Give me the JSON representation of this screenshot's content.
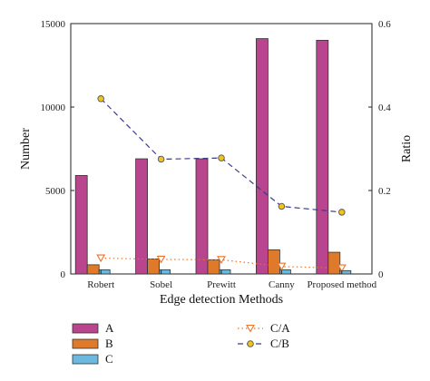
{
  "chart_data": {
    "type": "bar",
    "xlabel": "Edge detection Methods",
    "ylabel": "Number",
    "y2label": "Ratio",
    "categories": [
      "Robert",
      "Sobel",
      "Prewitt",
      "Canny",
      "Proposed method"
    ],
    "ylim": [
      0,
      15000
    ],
    "yticks": [
      0,
      5000,
      10000,
      15000
    ],
    "y2lim": [
      0,
      0.6
    ],
    "y2ticks": [
      0,
      0.2,
      0.4,
      0.6
    ],
    "y2ticklabels": [
      "0",
      "0.2",
      "0.4",
      "0.6"
    ],
    "grid": false,
    "legend_position": "bottom",
    "series": [
      {
        "name": "A",
        "kind": "bar",
        "axis": "left",
        "color": "#b8458e",
        "values": [
          5900,
          6900,
          6900,
          14100,
          14000
        ]
      },
      {
        "name": "B",
        "kind": "bar",
        "axis": "left",
        "color": "#e07a2b",
        "values": [
          550,
          900,
          850,
          1450,
          1300
        ]
      },
      {
        "name": "C",
        "kind": "bar",
        "axis": "left",
        "color": "#6bb9de",
        "values": [
          250,
          250,
          250,
          250,
          200
        ]
      },
      {
        "name": "C/A",
        "kind": "line",
        "axis": "right",
        "color": "#e8742a",
        "dash": "dotted",
        "marker": "triangle-down",
        "values": [
          0.038,
          0.035,
          0.034,
          0.018,
          0.014
        ]
      },
      {
        "name": "C/B",
        "kind": "line",
        "axis": "right",
        "color": "#3b3b8f",
        "dash": "dashed",
        "marker": "circle",
        "markerFill": "#f0c419",
        "values": [
          0.42,
          0.275,
          0.278,
          0.162,
          0.148
        ]
      }
    ]
  }
}
